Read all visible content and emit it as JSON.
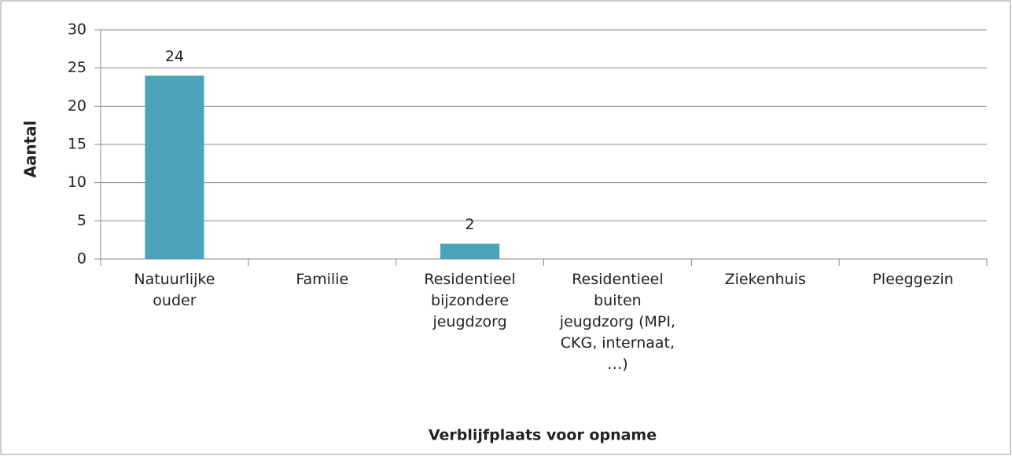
{
  "chart_data": {
    "type": "bar",
    "categories": [
      "Natuurlijke ouder",
      "Familie",
      "Residentieel bijzondere jeugdzorg",
      "Residentieel buiten jeugdzorg (MPI, CKG, internaat, …)",
      "Ziekenhuis",
      "Pleeggezin"
    ],
    "values": [
      24,
      0,
      2,
      0,
      0,
      0
    ],
    "color": "#4ba3b9",
    "ylim": [
      0,
      30
    ],
    "yticks": [
      0,
      5,
      10,
      15,
      20,
      25,
      30
    ],
    "grid": true,
    "y_label": "Aantal",
    "x_label": "Verblijfplaats voor opname"
  }
}
